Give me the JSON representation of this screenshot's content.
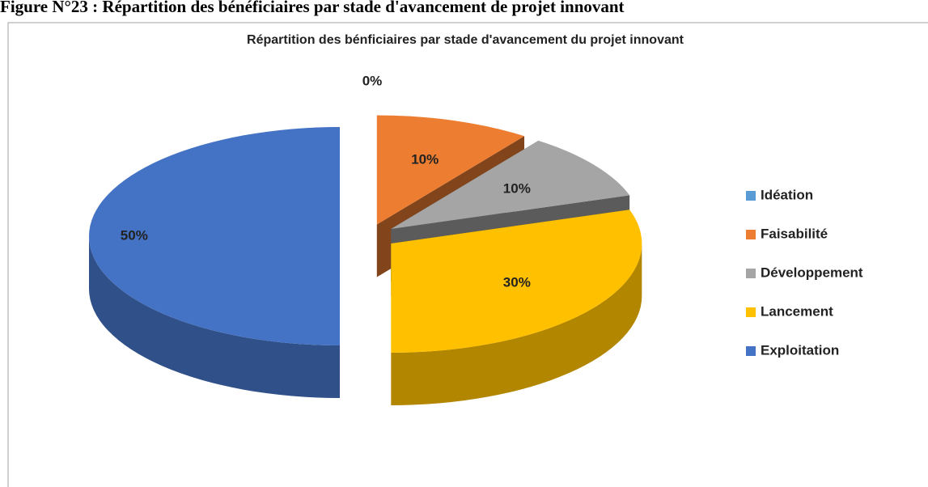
{
  "figure_caption": "Figure N°23 : Répartition des bénéficiaires par stade d'avancement de projet innovant",
  "chart_data": {
    "type": "pie3d",
    "title": "Répartition des bénficiaires par stade d'avancement du projet innovant",
    "categories": [
      "Idéation",
      "Faisabilité",
      "Développement",
      "Lancement",
      "Exploitation"
    ],
    "values": [
      0,
      10,
      10,
      30,
      50
    ],
    "value_labels": [
      "0%",
      "10%",
      "10%",
      "30%",
      "50%"
    ],
    "colors": [
      "#5b9bd5",
      "#ed7d31",
      "#a5a5a5",
      "#ffc000",
      "#4472c4"
    ],
    "legend": "right"
  }
}
